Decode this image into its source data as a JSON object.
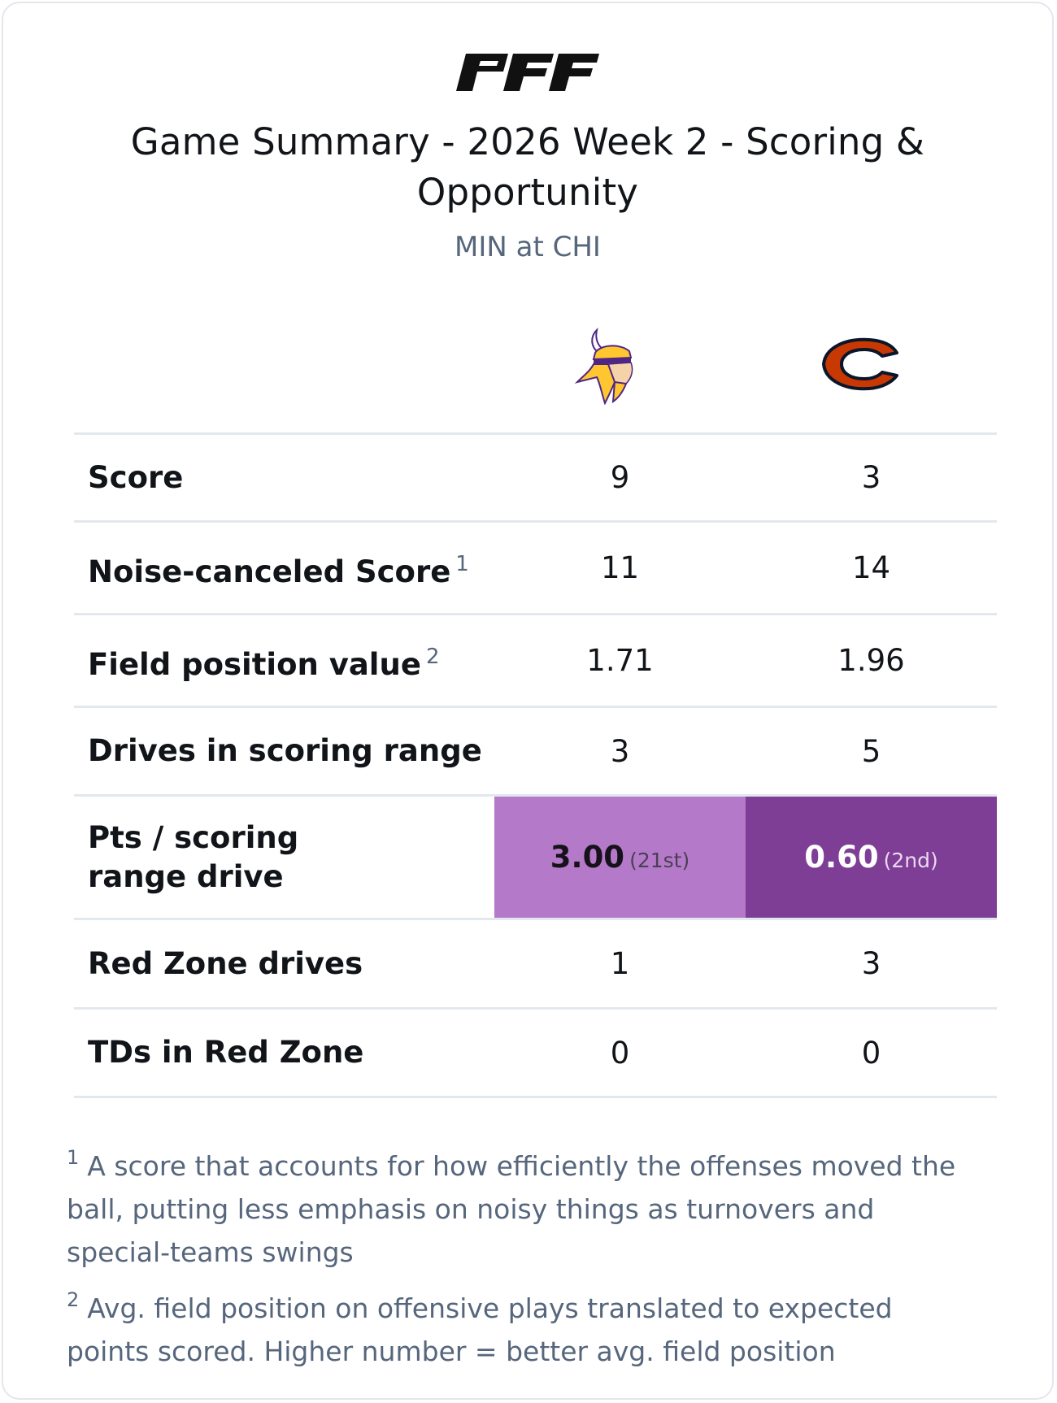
{
  "brand": {
    "logo_text": "PFF"
  },
  "header": {
    "title": "Game Summary - 2026 Week 2 - Scoring & Opportunity",
    "subtitle": "MIN at CHI"
  },
  "teams": {
    "away": {
      "logo": "vikings-logo"
    },
    "home": {
      "logo": "bears-logo"
    }
  },
  "rows": [
    {
      "label": "Score",
      "footnote": "",
      "away": "9",
      "home": "3"
    },
    {
      "label": "Noise-canceled Score",
      "footnote": "1",
      "away": "11",
      "home": "14"
    },
    {
      "label": "Field position value",
      "footnote": "2",
      "away": "1.71",
      "home": "1.96"
    },
    {
      "label": "Drives in scoring range",
      "footnote": "",
      "away": "3",
      "home": "5"
    },
    {
      "label": "Pts / scoring range drive",
      "footnote": "",
      "away": "3.00",
      "away_rank": "(21st)",
      "home": "0.60",
      "home_rank": "(2nd)"
    },
    {
      "label": "Red Zone drives",
      "footnote": "",
      "away": "1",
      "home": "3"
    },
    {
      "label": "TDs in Red Zone",
      "footnote": "",
      "away": "0",
      "home": "0"
    }
  ],
  "colors": {
    "highlight_light": "#b47ac9",
    "highlight_dark": "#7e3e96",
    "muted_text": "#56667c"
  },
  "footnotes": [
    {
      "marker": "1",
      "text": "A score that accounts for how efficiently the offenses moved the ball, putting less emphasis on noisy things as turnovers and special-teams swings"
    },
    {
      "marker": "2",
      "text": "Avg. field position on offensive plays translated to expected points scored. Higher number = better avg. field position"
    }
  ]
}
